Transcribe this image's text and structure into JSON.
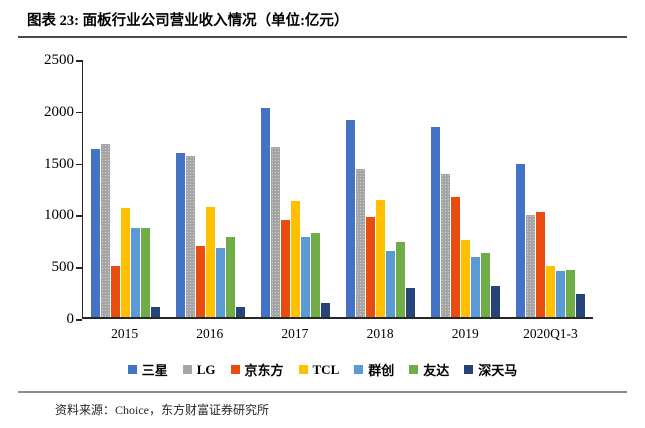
{
  "header": {
    "title": "图表 23: 面板行业公司营业收入情况（单位:亿元）"
  },
  "footer": {
    "source": "资料来源：Choice，东方财富证券研究所"
  },
  "chart_data": {
    "type": "bar",
    "title": "面板行业公司营业收入情况",
    "unit": "亿元",
    "categories": [
      "2015",
      "2016",
      "2017",
      "2018",
      "2019",
      "2020Q1-3"
    ],
    "series": [
      {
        "name": "三星",
        "color": "#4472C4",
        "textured": false,
        "values": [
          1620,
          1580,
          2020,
          1900,
          1830,
          1480
        ]
      },
      {
        "name": "LG",
        "color": "#A5A5A5",
        "textured": true,
        "values": [
          1670,
          1550,
          1640,
          1430,
          1380,
          980
        ]
      },
      {
        "name": "京东方",
        "color": "#E84C0E",
        "textured": false,
        "values": [
          490,
          690,
          940,
          970,
          1160,
          1010
        ]
      },
      {
        "name": "TCL",
        "color": "#FFC000",
        "textured": false,
        "values": [
          1050,
          1065,
          1120,
          1130,
          740,
          490
        ]
      },
      {
        "name": "群创",
        "color": "#5B9BD5",
        "textured": false,
        "values": [
          855,
          670,
          775,
          640,
          580,
          440
        ]
      },
      {
        "name": "友达",
        "color": "#70AD47",
        "textured": false,
        "values": [
          855,
          775,
          810,
          720,
          620,
          450
        ]
      },
      {
        "name": "深天马",
        "color": "#264478",
        "textured": false,
        "values": [
          100,
          100,
          135,
          280,
          300,
          220
        ]
      }
    ],
    "xlabel": "",
    "ylabel": "",
    "ylim": [
      0,
      2500
    ],
    "yticks": [
      0,
      500,
      1000,
      1500,
      2000,
      2500
    ],
    "grid": false,
    "legend_position": "bottom",
    "axis_color": "#262626"
  }
}
